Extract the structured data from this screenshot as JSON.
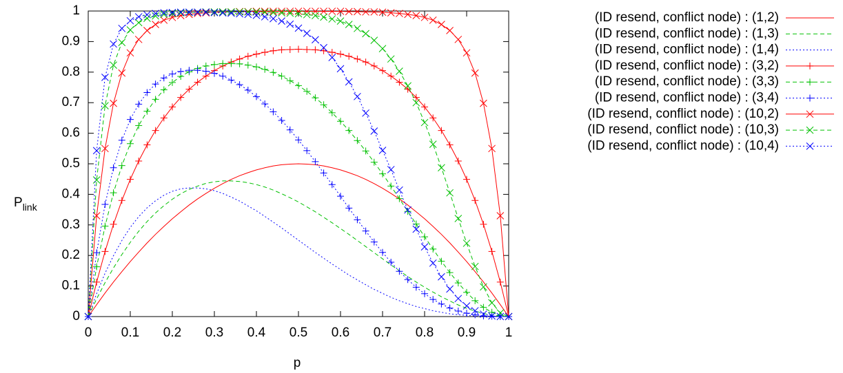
{
  "chart_data": {
    "type": "line",
    "xlabel": "p",
    "ylabel": "P",
    "ylabel_sub": "link",
    "xlim": [
      0,
      1
    ],
    "ylim": [
      0,
      1
    ],
    "xticks": [
      0,
      0.1,
      0.2,
      0.3,
      0.4,
      0.5,
      0.6,
      0.7,
      0.8,
      0.9,
      1
    ],
    "yticks": [
      0,
      0.1,
      0.2,
      0.3,
      0.4,
      0.5,
      0.6,
      0.7,
      0.8,
      0.9,
      1
    ],
    "legend": "outside-right",
    "x": [
      0,
      0.02,
      0.04,
      0.06,
      0.08,
      0.1,
      0.12,
      0.14,
      0.16,
      0.18,
      0.2,
      0.22,
      0.24,
      0.26,
      0.28,
      0.3,
      0.32,
      0.34,
      0.36,
      0.38,
      0.4,
      0.42,
      0.44,
      0.46,
      0.48,
      0.5,
      0.52,
      0.54,
      0.56,
      0.58,
      0.6,
      0.62,
      0.64,
      0.66,
      0.68,
      0.7,
      0.72,
      0.74,
      0.76,
      0.78,
      0.8,
      0.82,
      0.84,
      0.86,
      0.88,
      0.9,
      0.92,
      0.94,
      0.96,
      0.98,
      1
    ],
    "series": [
      {
        "name": "(ID resend, conflict node) : (1,2)",
        "color": "#ff0000",
        "dash": "solid",
        "marker": "none",
        "values": [
          0,
          0.039,
          0.077,
          0.113,
          0.147,
          0.18,
          0.211,
          0.241,
          0.269,
          0.295,
          0.32,
          0.343,
          0.365,
          0.385,
          0.403,
          0.42,
          0.435,
          0.449,
          0.461,
          0.471,
          0.48,
          0.487,
          0.493,
          0.497,
          0.499,
          0.5,
          0.499,
          0.497,
          0.493,
          0.487,
          0.48,
          0.471,
          0.461,
          0.449,
          0.435,
          0.42,
          0.403,
          0.385,
          0.365,
          0.343,
          0.32,
          0.295,
          0.269,
          0.241,
          0.211,
          0.18,
          0.147,
          0.113,
          0.077,
          0.039,
          0
        ]
      },
      {
        "name": "(ID resend, conflict node) : (1,3)",
        "color": "#00c000",
        "dash": "dashed",
        "marker": "none",
        "values": [
          0,
          0.058,
          0.111,
          0.159,
          0.203,
          0.243,
          0.279,
          0.311,
          0.339,
          0.363,
          0.384,
          0.402,
          0.416,
          0.427,
          0.436,
          0.441,
          0.444,
          0.444,
          0.442,
          0.438,
          0.432,
          0.424,
          0.414,
          0.402,
          0.389,
          0.375,
          0.359,
          0.343,
          0.325,
          0.307,
          0.288,
          0.269,
          0.249,
          0.229,
          0.209,
          0.189,
          0.169,
          0.15,
          0.131,
          0.113,
          0.096,
          0.08,
          0.065,
          0.051,
          0.038,
          0.027,
          0.018,
          0.01,
          0.005,
          0.001,
          0
        ]
      },
      {
        "name": "(ID resend, conflict node) : (1,4)",
        "color": "#0000ff",
        "dash": "dotted",
        "marker": "none",
        "values": [
          0,
          0.075,
          0.142,
          0.199,
          0.249,
          0.292,
          0.327,
          0.356,
          0.379,
          0.397,
          0.41,
          0.418,
          0.421,
          0.421,
          0.418,
          0.412,
          0.403,
          0.391,
          0.378,
          0.362,
          0.346,
          0.328,
          0.309,
          0.29,
          0.27,
          0.25,
          0.23,
          0.21,
          0.191,
          0.172,
          0.154,
          0.136,
          0.12,
          0.104,
          0.089,
          0.076,
          0.063,
          0.052,
          0.042,
          0.033,
          0.026,
          0.019,
          0.014,
          0.009,
          0.006,
          0.004,
          0.002,
          0.001,
          0,
          0,
          0
        ]
      },
      {
        "name": "(ID resend, conflict node) : (3,2)",
        "color": "#ff0000",
        "dash": "solid",
        "marker": "plus",
        "values": [
          0,
          0.113,
          0.213,
          0.302,
          0.38,
          0.449,
          0.509,
          0.562,
          0.609,
          0.65,
          0.686,
          0.717,
          0.744,
          0.767,
          0.787,
          0.805,
          0.82,
          0.833,
          0.843,
          0.852,
          0.859,
          0.865,
          0.87,
          0.873,
          0.874,
          0.875,
          0.874,
          0.873,
          0.87,
          0.865,
          0.859,
          0.852,
          0.843,
          0.833,
          0.82,
          0.805,
          0.787,
          0.767,
          0.744,
          0.717,
          0.686,
          0.65,
          0.609,
          0.562,
          0.509,
          0.449,
          0.38,
          0.302,
          0.213,
          0.113,
          0
        ]
      },
      {
        "name": "(ID resend, conflict node) : (3,3)",
        "color": "#00c000",
        "dash": "dashed",
        "marker": "plus",
        "values": [
          0,
          0.163,
          0.296,
          0.405,
          0.494,
          0.566,
          0.625,
          0.672,
          0.711,
          0.742,
          0.766,
          0.786,
          0.801,
          0.812,
          0.82,
          0.825,
          0.828,
          0.828,
          0.827,
          0.823,
          0.817,
          0.809,
          0.799,
          0.787,
          0.772,
          0.756,
          0.737,
          0.716,
          0.693,
          0.667,
          0.639,
          0.609,
          0.576,
          0.542,
          0.505,
          0.467,
          0.427,
          0.386,
          0.344,
          0.303,
          0.261,
          0.221,
          0.181,
          0.144,
          0.11,
          0.079,
          0.052,
          0.03,
          0.014,
          0.004,
          0
        ]
      },
      {
        "name": "(ID resend, conflict node) : (3,4)",
        "color": "#0000ff",
        "dash": "dotted",
        "marker": "plus",
        "values": [
          0,
          0.209,
          0.367,
          0.487,
          0.577,
          0.645,
          0.695,
          0.733,
          0.761,
          0.781,
          0.794,
          0.802,
          0.806,
          0.806,
          0.803,
          0.796,
          0.787,
          0.774,
          0.759,
          0.741,
          0.72,
          0.696,
          0.67,
          0.642,
          0.611,
          0.578,
          0.543,
          0.507,
          0.47,
          0.432,
          0.394,
          0.355,
          0.317,
          0.28,
          0.244,
          0.21,
          0.178,
          0.148,
          0.121,
          0.096,
          0.075,
          0.056,
          0.041,
          0.028,
          0.018,
          0.011,
          0.006,
          0.002,
          0.001,
          0,
          0
        ]
      },
      {
        "name": "(ID resend, conflict node) : (10,2)",
        "color": "#ff0000",
        "dash": "solid",
        "marker": "cross",
        "values": [
          0,
          0.33,
          0.55,
          0.698,
          0.797,
          0.863,
          0.907,
          0.936,
          0.956,
          0.97,
          0.979,
          0.985,
          0.989,
          0.992,
          0.994,
          0.996,
          0.997,
          0.997,
          0.998,
          0.998,
          0.999,
          0.999,
          0.999,
          0.999,
          0.999,
          0.999,
          0.999,
          0.999,
          0.999,
          0.999,
          0.999,
          0.998,
          0.998,
          0.997,
          0.997,
          0.996,
          0.994,
          0.992,
          0.989,
          0.985,
          0.979,
          0.97,
          0.956,
          0.936,
          0.907,
          0.863,
          0.797,
          0.698,
          0.55,
          0.33,
          0
        ]
      },
      {
        "name": "(ID resend, conflict node) : (10,3)",
        "color": "#00c000",
        "dash": "dashed",
        "marker": "cross",
        "values": [
          0,
          0.447,
          0.69,
          0.823,
          0.897,
          0.938,
          0.962,
          0.976,
          0.984,
          0.989,
          0.992,
          0.994,
          0.995,
          0.996,
          0.997,
          0.997,
          0.997,
          0.997,
          0.997,
          0.997,
          0.997,
          0.996,
          0.995,
          0.994,
          0.993,
          0.991,
          0.988,
          0.985,
          0.98,
          0.974,
          0.967,
          0.956,
          0.943,
          0.926,
          0.904,
          0.877,
          0.843,
          0.803,
          0.755,
          0.7,
          0.635,
          0.564,
          0.487,
          0.405,
          0.321,
          0.24,
          0.164,
          0.097,
          0.045,
          0.012,
          0
        ]
      },
      {
        "name": "(ID resend, conflict node) : (10,4)",
        "color": "#0000ff",
        "dash": "dotted",
        "marker": "cross",
        "values": [
          0,
          0.543,
          0.783,
          0.892,
          0.943,
          0.968,
          0.981,
          0.988,
          0.992,
          0.994,
          0.995,
          0.996,
          0.996,
          0.996,
          0.996,
          0.995,
          0.994,
          0.993,
          0.991,
          0.989,
          0.986,
          0.981,
          0.975,
          0.967,
          0.957,
          0.944,
          0.927,
          0.906,
          0.88,
          0.848,
          0.811,
          0.768,
          0.72,
          0.666,
          0.607,
          0.544,
          0.481,
          0.414,
          0.349,
          0.286,
          0.228,
          0.175,
          0.13,
          0.09,
          0.059,
          0.035,
          0.019,
          0.008,
          0.002,
          0,
          0
        ]
      }
    ]
  }
}
